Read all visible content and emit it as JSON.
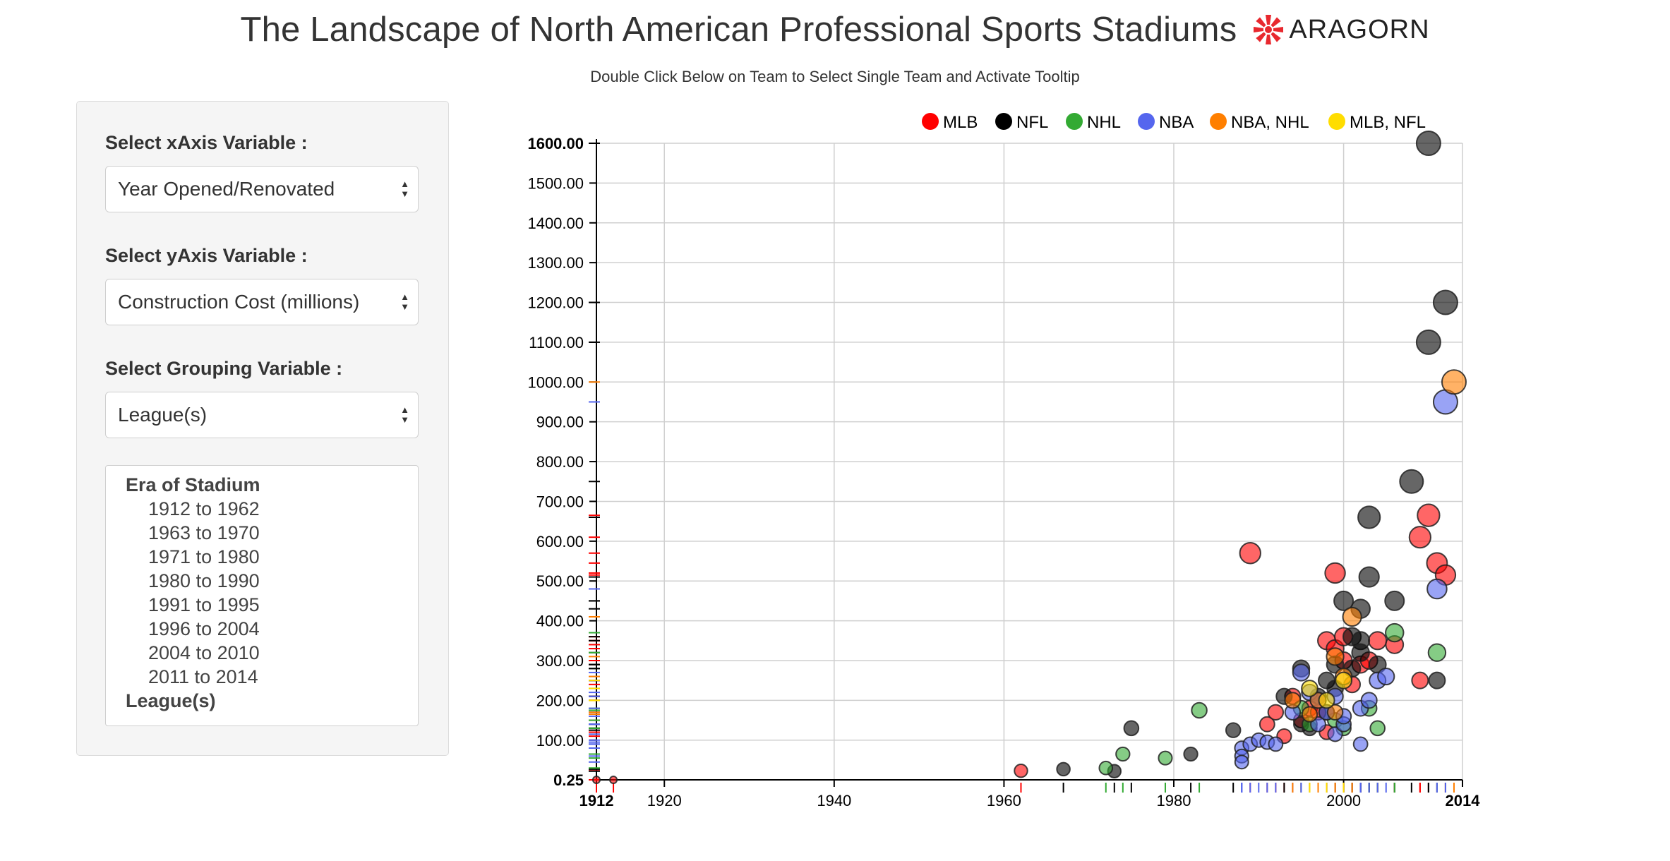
{
  "header": {
    "title": "The Landscape of North American Professional Sports Stadiums",
    "logo_text": "ARAGORN",
    "subtitle": "Double Click Below on Team to Select Single Team and Activate Tooltip"
  },
  "controls": {
    "x_label": "Select xAxis Variable :",
    "x_value": "Year Opened/Renovated",
    "y_label": "Select yAxis Variable :",
    "y_value": "Construction Cost (millions)",
    "group_label": "Select Grouping Variable :",
    "group_value": "League(s)",
    "listbox": {
      "group1": "Era of Stadium",
      "options": [
        "1912 to 1962",
        "1963 to 1970",
        "1971 to 1980",
        "1980 to 1990",
        "1991 to 1995",
        "1996 to 2004",
        "2004 to 2010",
        "2011 to 2014"
      ],
      "group2": "League(s)"
    }
  },
  "colors": {
    "MLB": "#ff0000",
    "NFL": "#000000",
    "NHL": "#33aa33",
    "NBA": "#5566ee",
    "NBA, NHL": "#ff7f00",
    "MLB, NFL": "#ffdd00",
    "logo": "#e8282e"
  },
  "chart_data": {
    "type": "scatter",
    "title": "",
    "xlabel": "",
    "ylabel": "",
    "xlim": [
      1912,
      2014
    ],
    "ylim": [
      0.25,
      1600
    ],
    "x_ticks": [
      1912,
      1920,
      1940,
      1960,
      1980,
      2000,
      2014
    ],
    "x_tick_labels": [
      "1912",
      "1920",
      "1940",
      "1960",
      "1980",
      "2000",
      "2014"
    ],
    "y_ticks": [
      0.25,
      100,
      200,
      300,
      400,
      500,
      600,
      700,
      800,
      900,
      1000,
      1100,
      1200,
      1300,
      1400,
      1500,
      1600
    ],
    "y_tick_labels": [
      "0.25",
      "100.00",
      "200.00",
      "300.00",
      "400.00",
      "500.00",
      "600.00",
      "700.00",
      "800.00",
      "900.00",
      "1000.00",
      "1100.00",
      "1200.00",
      "1300.00",
      "1400.00",
      "1500.00",
      "1600.00"
    ],
    "legend_position": "top",
    "grid": true,
    "series": [
      {
        "name": "MLB",
        "points": [
          [
            1912,
            0.25
          ],
          [
            1914,
            0.25
          ],
          [
            1962,
            23
          ],
          [
            1989,
            570
          ],
          [
            1991,
            140
          ],
          [
            1992,
            170
          ],
          [
            1993,
            110
          ],
          [
            1994,
            210
          ],
          [
            1995,
            150
          ],
          [
            1996,
            180
          ],
          [
            1997,
            170
          ],
          [
            1998,
            350
          ],
          [
            1998,
            120
          ],
          [
            1999,
            520
          ],
          [
            1999,
            330
          ],
          [
            2000,
            360
          ],
          [
            2000,
            300
          ],
          [
            2001,
            240
          ],
          [
            2002,
            290
          ],
          [
            2003,
            300
          ],
          [
            2004,
            350
          ],
          [
            2006,
            340
          ],
          [
            2009,
            610
          ],
          [
            2009,
            250
          ],
          [
            2010,
            665
          ],
          [
            2011,
            545
          ],
          [
            2012,
            515
          ]
        ]
      },
      {
        "name": "NFL",
        "points": [
          [
            1967,
            27
          ],
          [
            1973,
            22
          ],
          [
            1975,
            130
          ],
          [
            1982,
            65
          ],
          [
            1987,
            125
          ],
          [
            1993,
            210
          ],
          [
            1995,
            280
          ],
          [
            1995,
            140
          ],
          [
            1996,
            130
          ],
          [
            1997,
            210
          ],
          [
            1998,
            250
          ],
          [
            1998,
            170
          ],
          [
            1999,
            230
          ],
          [
            1999,
            290
          ],
          [
            2000,
            450
          ],
          [
            2001,
            360
          ],
          [
            2001,
            280
          ],
          [
            2002,
            430
          ],
          [
            2002,
            350
          ],
          [
            2002,
            320
          ],
          [
            2003,
            510
          ],
          [
            2003,
            660
          ],
          [
            2004,
            290
          ],
          [
            2006,
            450
          ],
          [
            2008,
            750
          ],
          [
            2010,
            1100
          ],
          [
            2010,
            1600
          ],
          [
            2011,
            250
          ],
          [
            2012,
            1200
          ]
        ]
      },
      {
        "name": "NHL",
        "points": [
          [
            1972,
            30
          ],
          [
            1974,
            65
          ],
          [
            1979,
            55
          ],
          [
            1983,
            175
          ],
          [
            1995,
            180
          ],
          [
            1996,
            140
          ],
          [
            1999,
            150
          ],
          [
            2000,
            130
          ],
          [
            2003,
            180
          ],
          [
            2004,
            130
          ],
          [
            2006,
            370
          ],
          [
            2011,
            320
          ]
        ]
      },
      {
        "name": "NBA",
        "points": [
          [
            1988,
            80
          ],
          [
            1988,
            60
          ],
          [
            1988,
            45
          ],
          [
            1989,
            90
          ],
          [
            1990,
            100
          ],
          [
            1991,
            95
          ],
          [
            1992,
            90
          ],
          [
            1994,
            170
          ],
          [
            1995,
            270
          ],
          [
            1996,
            220
          ],
          [
            1997,
            200
          ],
          [
            1997,
            140
          ],
          [
            1998,
            170
          ],
          [
            1999,
            210
          ],
          [
            1999,
            115
          ],
          [
            2000,
            140
          ],
          [
            2000,
            160
          ],
          [
            2002,
            180
          ],
          [
            2002,
            90
          ],
          [
            2003,
            200
          ],
          [
            2004,
            250
          ],
          [
            2005,
            260
          ],
          [
            2011,
            480
          ],
          [
            2012,
            950
          ]
        ]
      },
      {
        "name": "NBA, NHL",
        "points": [
          [
            1994,
            200
          ],
          [
            1996,
            165
          ],
          [
            1997,
            200
          ],
          [
            1999,
            310
          ],
          [
            1999,
            170
          ],
          [
            2000,
            260
          ],
          [
            2001,
            410
          ],
          [
            2013,
            1000
          ]
        ]
      },
      {
        "name": "MLB, NFL",
        "points": [
          [
            1996,
            230
          ],
          [
            1998,
            200
          ],
          [
            2000,
            250
          ]
        ]
      }
    ]
  }
}
